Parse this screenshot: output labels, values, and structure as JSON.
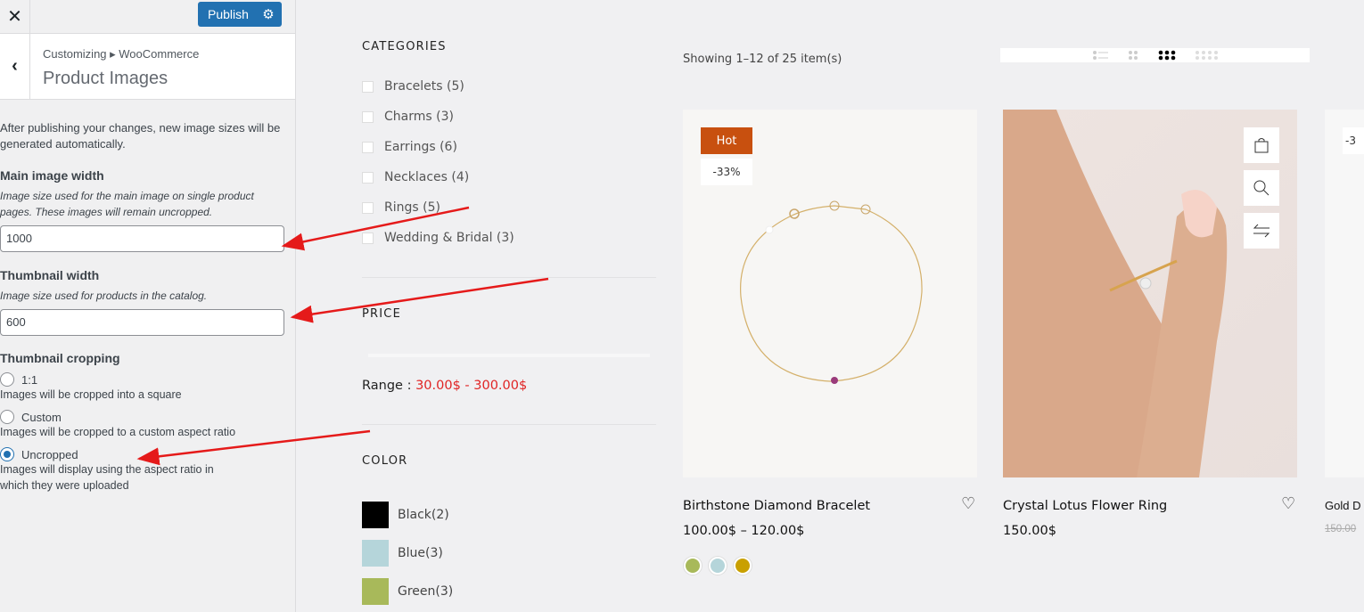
{
  "panel": {
    "close_icon": "close-icon",
    "publish": "Publish",
    "settings_icon": "gear-icon",
    "breadcrumb": "Customizing ▸ WooCommerce",
    "title": "Product Images",
    "intro": "After publishing your changes, new image sizes will be generated automatically.",
    "main_label": "Main image width",
    "main_desc": "Image size used for the main image on single product pages. These images will remain uncropped.",
    "main_value": "1000",
    "thumb_label": "Thumbnail width",
    "thumb_desc": "Image size used for products in the catalog.",
    "thumb_value": "600",
    "crop_label": "Thumbnail cropping",
    "crop_options": [
      {
        "label": "1:1",
        "desc": "Images will be cropped into a square",
        "selected": false
      },
      {
        "label": "Custom",
        "desc": "Images will be cropped to a custom aspect ratio",
        "selected": false
      },
      {
        "label": "Uncropped",
        "desc": "Images will display using the aspect ratio in which they were uploaded",
        "selected": true
      }
    ]
  },
  "shop": {
    "categories_title": "CATEGORIES",
    "categories": [
      "Bracelets (5)",
      "Charms (3)",
      "Earrings (6)",
      "Necklaces (4)",
      "Rings (5)",
      "Wedding & Bridal (3)"
    ],
    "price_title": "PRICE",
    "range_label": "Range :",
    "range_value": "30.00$ - 300.00$",
    "color_title": "COLOR",
    "colors": [
      {
        "label": "Black(2)",
        "hex": "#000000"
      },
      {
        "label": "Blue(3)",
        "hex": "#b5d5da"
      },
      {
        "label": "Green(3)",
        "hex": "#a8b95a"
      }
    ],
    "showing": "Showing 1–12 of 25 item(s)",
    "view_modes": [
      "list",
      "grid-2",
      "grid-3",
      "grid-4"
    ],
    "active_view": "grid-3",
    "products": [
      {
        "name": "Birthstone Diamond Bracelet",
        "price": "100.00$ – 120.00$",
        "badge_hot": "Hot",
        "badge_discount": "-33%",
        "swatches": [
          "#a8b95a",
          "#b5d5da",
          "#c9a000"
        ]
      },
      {
        "name": "Crystal Lotus Flower Ring",
        "price": "150.00$"
      },
      {
        "name": "Gold D",
        "price_old": "150.00",
        "badge_discount": "-3"
      }
    ],
    "accent": "#c8500f",
    "range_color": "#e02424"
  }
}
